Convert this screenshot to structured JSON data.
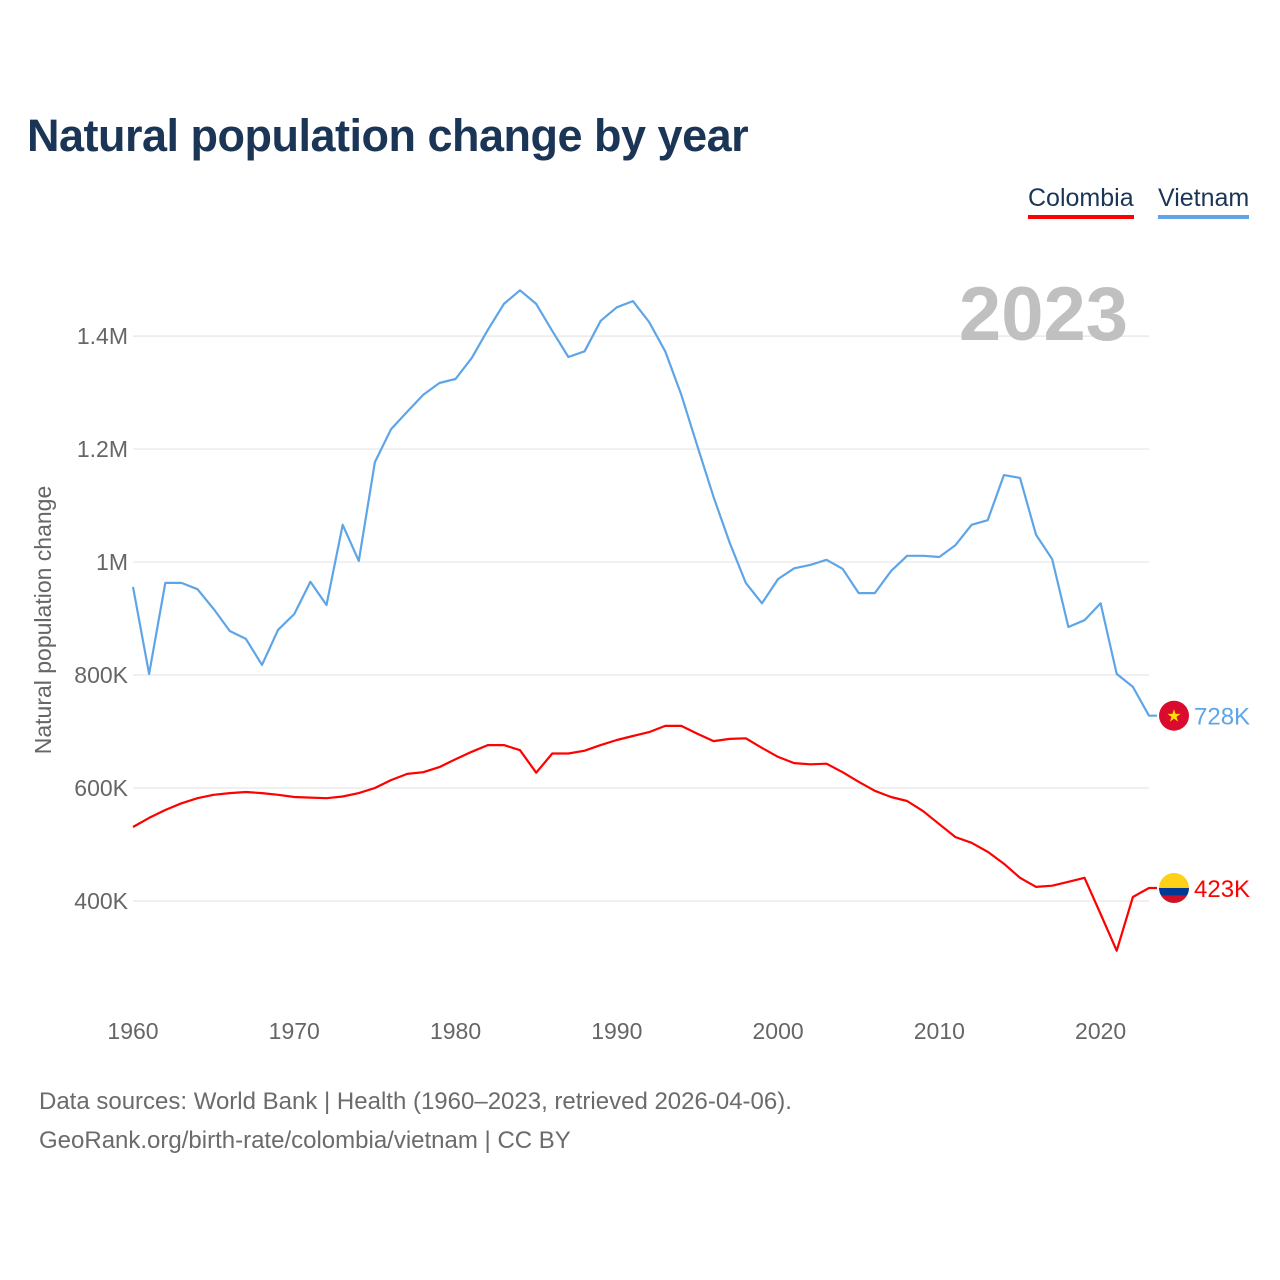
{
  "title": "Natural population change by year",
  "legend": [
    {
      "name": "Colombia",
      "color": "#ff0000"
    },
    {
      "name": "Vietnam",
      "color": "#5ea5e8"
    }
  ],
  "footer": {
    "line1": "Data sources: World Bank | Health (1960–2023, retrieved 2026-04-06).",
    "line2": "GeoRank.org/birth-rate/colombia/vietnam | CC BY"
  },
  "chart_data": {
    "type": "line",
    "title": "Natural population change by year",
    "xlabel": "",
    "ylabel": "Natural population change",
    "year_label": "2023",
    "xlim": [
      1960,
      2023
    ],
    "ylim": [
      207000,
      1517000
    ],
    "x_ticks": [
      1960,
      1970,
      1980,
      1990,
      2000,
      2010,
      2020
    ],
    "y_ticks": [
      {
        "v": 400000,
        "label": "400K"
      },
      {
        "v": 600000,
        "label": "600K"
      },
      {
        "v": 800000,
        "label": "800K"
      },
      {
        "v": 1000000,
        "label": "1M"
      },
      {
        "v": 1200000,
        "label": "1.2M"
      },
      {
        "v": 1400000,
        "label": "1.4M"
      }
    ],
    "grid": true,
    "legend_position": "top-right",
    "x": [
      1960,
      1961,
      1962,
      1963,
      1964,
      1965,
      1966,
      1967,
      1968,
      1969,
      1970,
      1971,
      1972,
      1973,
      1974,
      1975,
      1976,
      1977,
      1978,
      1979,
      1980,
      1981,
      1982,
      1983,
      1984,
      1985,
      1986,
      1987,
      1988,
      1989,
      1990,
      1991,
      1992,
      1993,
      1994,
      1995,
      1996,
      1997,
      1998,
      1999,
      2000,
      2001,
      2002,
      2003,
      2004,
      2005,
      2006,
      2007,
      2008,
      2009,
      2010,
      2011,
      2012,
      2013,
      2014,
      2015,
      2016,
      2017,
      2018,
      2019,
      2020,
      2021,
      2022,
      2023
    ],
    "series": [
      {
        "name": "Vietnam",
        "color": "#5ea5e8",
        "end_label": "728K",
        "flag": "vietnam",
        "values": [
          956000,
          802000,
          963000,
          963000,
          952000,
          917000,
          878000,
          864000,
          818000,
          880000,
          908000,
          965000,
          924000,
          1066000,
          1002000,
          1177000,
          1235000,
          1266000,
          1296000,
          1317000,
          1324000,
          1361000,
          1411000,
          1457000,
          1481000,
          1457000,
          1409000,
          1363000,
          1373000,
          1427000,
          1451000,
          1462000,
          1425000,
          1373000,
          1296000,
          1205000,
          1115000,
          1034000,
          963000,
          927000,
          970000,
          989000,
          995000,
          1004000,
          988000,
          945000,
          945000,
          984000,
          1011000,
          1011000,
          1009000,
          1030000,
          1066000,
          1074000,
          1154000,
          1149000,
          1048000,
          1005000,
          885000,
          897000,
          927000,
          802000,
          779000,
          728000
        ]
      },
      {
        "name": "Colombia",
        "color": "#ff0000",
        "end_label": "423K",
        "flag": "colombia",
        "values": [
          531000,
          547000,
          561000,
          573000,
          582000,
          588000,
          591000,
          593000,
          591000,
          588000,
          584000,
          583000,
          582000,
          585000,
          591000,
          600000,
          614000,
          625000,
          628000,
          637000,
          651000,
          664000,
          676000,
          676000,
          667000,
          627000,
          661000,
          661000,
          666000,
          676000,
          685000,
          692000,
          699000,
          710000,
          710000,
          696000,
          683000,
          687000,
          688000,
          671000,
          655000,
          644000,
          642000,
          643000,
          628000,
          611000,
          595000,
          584000,
          577000,
          559000,
          536000,
          513000,
          503000,
          487000,
          466000,
          441000,
          425000,
          427000,
          434000,
          441000,
          377000,
          312000,
          407000,
          423000
        ]
      }
    ]
  }
}
